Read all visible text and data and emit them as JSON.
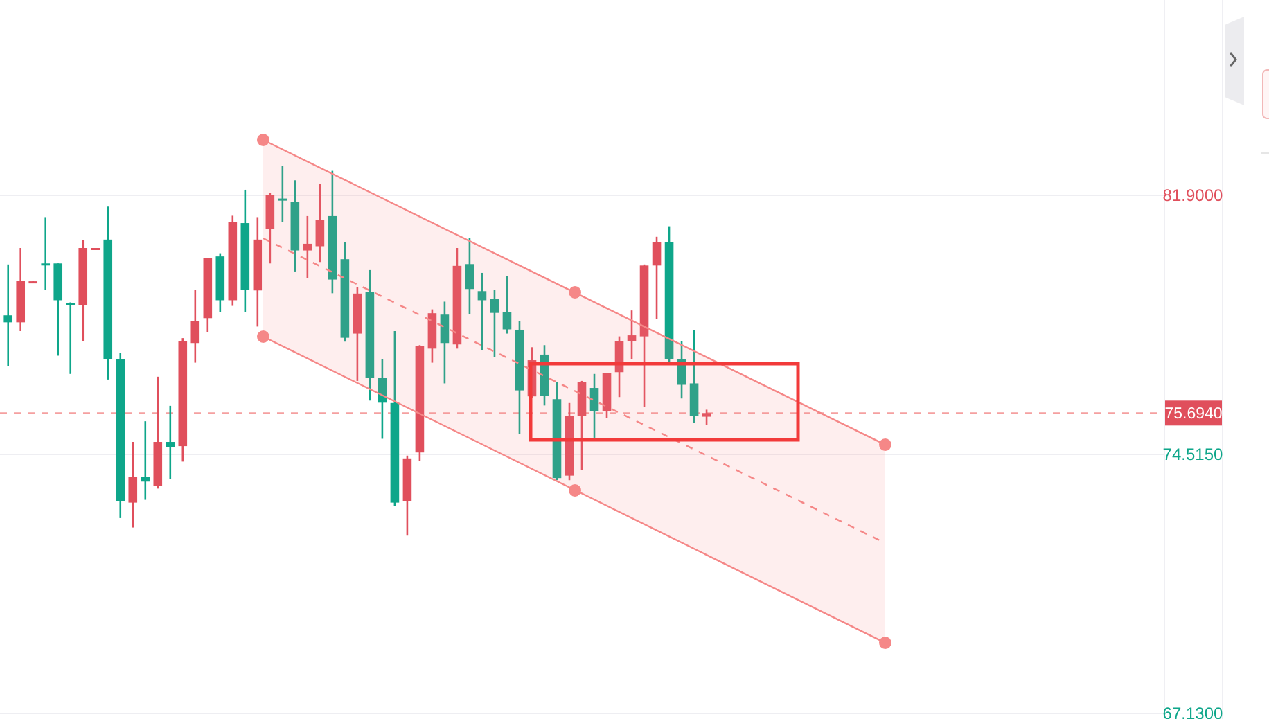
{
  "chart_data": {
    "type": "candlestick",
    "categories": [
      null,
      null,
      null,
      null,
      null,
      null,
      null,
      null,
      null,
      null,
      null,
      null,
      null,
      null,
      null,
      null,
      null,
      null,
      null,
      null,
      null,
      null,
      null,
      null,
      null,
      null,
      null,
      null,
      null,
      null,
      null,
      null,
      null,
      null,
      null,
      null,
      null,
      null,
      null,
      null,
      null,
      null,
      null,
      null,
      null,
      null,
      null,
      null,
      null,
      null,
      null,
      null,
      null,
      null,
      null,
      null,
      null,
      null,
      null,
      null,
      null,
      null,
      null,
      null,
      null,
      null,
      null,
      null,
      null,
      null,
      null,
      null,
      null,
      null,
      null,
      null,
      null,
      null,
      null,
      null,
      null,
      null,
      null,
      null,
      null,
      null,
      null,
      null,
      null,
      null,
      null,
      null,
      null
    ],
    "ohlc": [
      [
        78.48,
        79.93,
        77.04,
        78.28
      ],
      [
        78.28,
        80.4,
        78.03,
        79.46
      ],
      [
        79.43,
        79.45,
        79.43,
        79.45
      ],
      [
        79.96,
        81.28,
        79.21,
        79.94
      ],
      [
        79.96,
        79.96,
        77.33,
        78.91
      ],
      [
        78.83,
        78.85,
        76.81,
        78.81
      ],
      [
        78.78,
        80.62,
        77.75,
        80.4
      ],
      [
        80.39,
        80.4,
        80.39,
        80.4
      ],
      [
        80.64,
        81.58,
        76.65,
        77.24
      ],
      [
        77.24,
        77.4,
        72.7,
        73.18
      ],
      [
        73.14,
        74.87,
        72.43,
        73.88
      ],
      [
        73.88,
        75.46,
        73.22,
        73.74
      ],
      [
        73.62,
        76.73,
        73.54,
        74.87
      ],
      [
        74.87,
        75.9,
        73.82,
        74.72
      ],
      [
        74.75,
        77.83,
        74.31,
        77.75
      ],
      [
        77.69,
        79.21,
        77.13,
        78.31
      ],
      [
        78.4,
        80.12,
        78.0,
        80.12
      ],
      [
        80.16,
        80.25,
        78.58,
        78.91
      ],
      [
        78.91,
        81.32,
        78.75,
        81.15
      ],
      [
        81.11,
        82.06,
        78.58,
        79.21
      ],
      [
        79.19,
        81.28,
        78.16,
        80.64
      ],
      [
        80.95,
        81.98,
        79.96,
        81.91
      ],
      [
        81.81,
        82.73,
        81.15,
        81.75
      ],
      [
        81.71,
        82.33,
        79.73,
        80.33
      ],
      [
        80.33,
        81.31,
        79.54,
        80.52
      ],
      [
        80.45,
        82.23,
        80.0,
        81.19
      ],
      [
        81.31,
        82.6,
        79.11,
        79.5
      ],
      [
        80.08,
        80.56,
        77.73,
        77.84
      ],
      [
        77.96,
        79.29,
        76.61,
        79.1
      ],
      [
        79.14,
        79.77,
        76.05,
        76.7
      ],
      [
        76.7,
        77.24,
        74.96,
        75.99
      ],
      [
        75.98,
        78.03,
        73.05,
        73.14
      ],
      [
        73.18,
        74.48,
        72.2,
        74.4
      ],
      [
        74.57,
        77.63,
        74.33,
        77.6
      ],
      [
        77.53,
        78.65,
        77.13,
        78.54
      ],
      [
        78.5,
        78.87,
        76.54,
        77.69
      ],
      [
        77.65,
        80.4,
        77.53,
        79.89
      ],
      [
        79.94,
        80.69,
        78.52,
        79.23
      ],
      [
        79.17,
        79.69,
        77.49,
        78.91
      ],
      [
        78.94,
        79.21,
        77.29,
        78.55
      ],
      [
        78.58,
        79.61,
        77.96,
        78.08
      ],
      [
        78.07,
        78.31,
        75.1,
        76.34
      ],
      [
        76.17,
        77.57,
        76.12,
        77.2
      ],
      [
        77.36,
        77.63,
        75.91,
        76.19
      ],
      [
        76.09,
        76.57,
        73.78,
        73.84
      ],
      [
        73.91,
        75.98,
        73.78,
        75.62
      ],
      [
        75.62,
        76.61,
        74.07,
        76.57
      ],
      [
        76.41,
        76.81,
        74.99,
        75.75
      ],
      [
        75.75,
        76.84,
        75.55,
        76.84
      ],
      [
        76.86,
        77.88,
        76.15,
        77.75
      ],
      [
        77.75,
        78.62,
        77.23,
        77.91
      ],
      [
        77.88,
        79.93,
        75.86,
        79.9
      ],
      [
        79.9,
        80.72,
        78.38,
        80.56
      ],
      [
        80.56,
        81.02,
        77.16,
        77.24
      ],
      [
        77.24,
        77.75,
        76.11,
        76.5
      ],
      [
        76.54,
        78.07,
        75.42,
        75.62
      ],
      [
        75.59,
        75.79,
        75.36,
        75.694
      ],
      null,
      null,
      null,
      null,
      null,
      null,
      null,
      null,
      null,
      null,
      null,
      null,
      null,
      null,
      null,
      null,
      null,
      null,
      null,
      null,
      null,
      null,
      null,
      null,
      null,
      null,
      null,
      null,
      null,
      null,
      null,
      null,
      null,
      null,
      null,
      null
    ],
    "colors": [
      "#0ea68a",
      "#e04f5c",
      "#e04f5c",
      "#0ea68a",
      "#0ea68a",
      "#0ea68a",
      "#e04f5c",
      "#e04f5c",
      "#0ea68a",
      "#0ea68a",
      "#e04f5c",
      "#0ea68a",
      "#e04f5c",
      "#0ea68a",
      "#e04f5c",
      "#e04f5c",
      "#e04f5c",
      "#0ea68a",
      "#e04f5c",
      "#0ea68a",
      "#e04f5c",
      "#e04f5c",
      "#0ea68a",
      "#0ea68a",
      "#e04f5c",
      "#e04f5c",
      "#0ea68a",
      "#0ea68a",
      "#e04f5c",
      "#0ea68a",
      "#0ea68a",
      "#0ea68a",
      "#e04f5c",
      "#e04f5c",
      "#e04f5c",
      "#0ea68a",
      "#e04f5c",
      "#0ea68a",
      "#0ea68a",
      "#0ea68a",
      "#0ea68a",
      "#0ea68a",
      "#e04f5c",
      "#0ea68a",
      "#0ea68a",
      "#e04f5c",
      "#e04f5c",
      "#0ea68a",
      "#e04f5c",
      "#e04f5c",
      "#e04f5c",
      "#e04f5c",
      "#e04f5c",
      "#0ea68a",
      "#0ea68a",
      "#0ea68a",
      "#e04f5c",
      null,
      null,
      null,
      null,
      null,
      null,
      null,
      null,
      null,
      null,
      null,
      null,
      null,
      null,
      null,
      null,
      null,
      null,
      null,
      null,
      null,
      null,
      null,
      null,
      null,
      null,
      null,
      null,
      null,
      null,
      null,
      null,
      null,
      null,
      null,
      null
    ],
    "ylim": [
      67.05,
      87.47
    ],
    "yticks": [
      {
        "value": 81.9,
        "label": "81.9000"
      },
      {
        "value": 74.515,
        "label": "74.5150"
      },
      {
        "value": 67.13,
        "label": "67.1300"
      }
    ],
    "tick_labels": "y",
    "grid": "y",
    "ref_lines": [
      {
        "axis": "y",
        "value": 75.694,
        "label": "75.6940",
        "color": "#f5a0a0",
        "line_style": "dashed"
      }
    ]
  }
}
